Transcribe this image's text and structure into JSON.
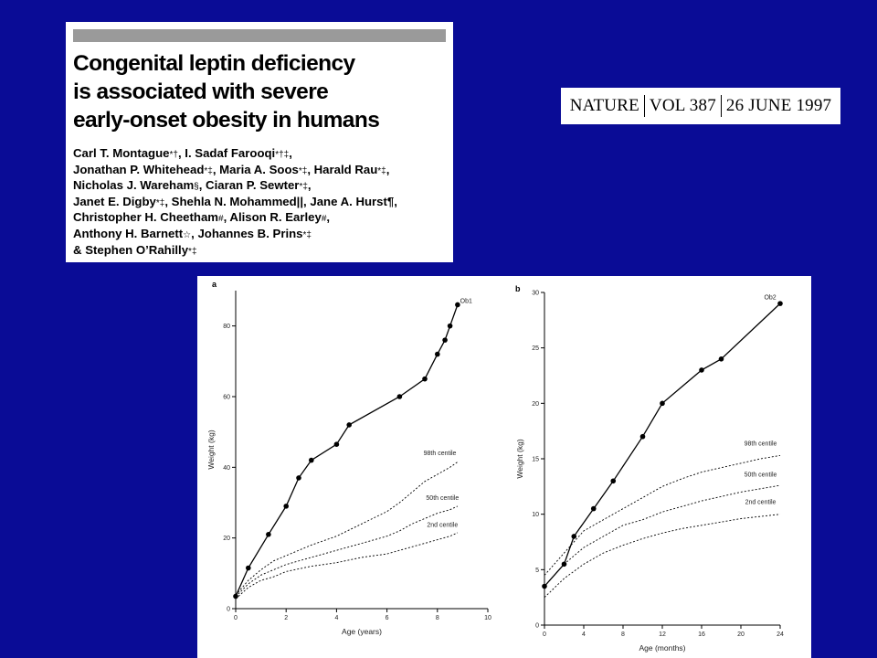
{
  "paper": {
    "title": "Congenital leptin deficiency\nis associated with severe\nearly-onset obesity in humans",
    "authors": [
      [
        {
          "t": "Carl T. Montague"
        },
        {
          "m": "*†"
        },
        {
          "t": ", I. Sadaf Farooqi"
        },
        {
          "m": "*†‡"
        },
        {
          "t": ","
        }
      ],
      [
        {
          "t": "Jonathan P. Whitehead"
        },
        {
          "m": "*‡"
        },
        {
          "t": ", Maria A. Soos"
        },
        {
          "m": "*‡"
        },
        {
          "t": ", Harald Rau"
        },
        {
          "m": "*‡"
        },
        {
          "t": ","
        }
      ],
      [
        {
          "t": "Nicholas J. Wareham"
        },
        {
          "m": "§"
        },
        {
          "t": ", Ciaran P. Sewter"
        },
        {
          "m": "*‡"
        },
        {
          "t": ","
        }
      ],
      [
        {
          "t": "Janet E. Digby"
        },
        {
          "m": "*‡"
        },
        {
          "t": ", Shehla N. Mohammed||, Jane A. Hurst¶,"
        }
      ],
      [
        {
          "t": "Christopher H. Cheetham"
        },
        {
          "m": "#"
        },
        {
          "t": ", Alison R. Earley"
        },
        {
          "m": "#"
        },
        {
          "t": ","
        }
      ],
      [
        {
          "t": "Anthony H. Barnett"
        },
        {
          "m": "☆"
        },
        {
          "t": ", Johannes B. Prins"
        },
        {
          "m": "*‡"
        }
      ],
      [
        {
          "t": "& Stephen O’Rahilly"
        },
        {
          "m": "*‡"
        }
      ]
    ]
  },
  "citation": {
    "journal": "NATURE",
    "volume": "VOL 387",
    "date": "26 JUNE 1997"
  },
  "chart_data": [
    {
      "type": "line",
      "panel": "a",
      "xlabel": "Age (years)",
      "ylabel": "Weight (kg)",
      "xlim": [
        0,
        10
      ],
      "ylim": [
        0,
        90
      ],
      "xticks": [
        0,
        2,
        4,
        6,
        8,
        10
      ],
      "yticks": [
        0,
        20,
        40,
        60,
        80
      ],
      "series": [
        {
          "name": "Ob1",
          "style": "solid-markers",
          "x": [
            0,
            0.5,
            1.3,
            2.0,
            2.5,
            3.0,
            4.0,
            4.5,
            6.5,
            7.5,
            8.0,
            8.3,
            8.5,
            8.8
          ],
          "y": [
            3.5,
            11.5,
            21,
            29,
            37,
            42,
            46.5,
            52,
            60,
            65,
            72,
            76,
            80,
            86
          ]
        },
        {
          "name": "98th centile",
          "style": "dashed",
          "x": [
            0,
            0.5,
            1,
            1.5,
            2,
            3,
            4,
            5,
            6,
            6.5,
            7,
            7.5,
            8,
            8.5,
            8.8
          ],
          "y": [
            3.8,
            8,
            11,
            13.5,
            15,
            18,
            20.5,
            24,
            27.5,
            30,
            33,
            36,
            38,
            40,
            41.5
          ]
        },
        {
          "name": "50th centile",
          "style": "dashed",
          "x": [
            0,
            0.5,
            1,
            1.5,
            2,
            3,
            4,
            5,
            6,
            6.5,
            7,
            7.5,
            8,
            8.5,
            8.8
          ],
          "y": [
            3.4,
            7,
            9.5,
            11,
            12.5,
            14.5,
            16.5,
            18.5,
            20.5,
            22,
            24,
            25.5,
            27,
            28,
            29
          ]
        },
        {
          "name": "2nd centile",
          "style": "dashed",
          "x": [
            0,
            0.5,
            1,
            1.5,
            2,
            3,
            4,
            5,
            6,
            6.5,
            7,
            7.5,
            8,
            8.5,
            8.8
          ],
          "y": [
            2.8,
            6,
            8,
            9,
            10.5,
            12,
            13,
            14.5,
            15.5,
            16.5,
            17.5,
            18.5,
            19.5,
            20.5,
            21.5
          ]
        }
      ]
    },
    {
      "type": "line",
      "panel": "b",
      "xlabel": "Age (months)",
      "ylabel": "Weight (kg)",
      "xlim": [
        0,
        24
      ],
      "ylim": [
        0,
        30
      ],
      "xticks": [
        0,
        4,
        8,
        12,
        16,
        20,
        24
      ],
      "yticks": [
        0,
        5,
        10,
        15,
        20,
        25,
        30
      ],
      "series": [
        {
          "name": "Ob2",
          "style": "solid-markers",
          "x": [
            0,
            2,
            3,
            5,
            7,
            10,
            12,
            16,
            18,
            24
          ],
          "y": [
            3.5,
            5.5,
            8,
            10.5,
            13,
            17,
            20,
            23,
            24,
            29
          ]
        },
        {
          "name": "98th centile",
          "style": "dashed",
          "x": [
            0,
            2,
            4,
            6,
            8,
            10,
            12,
            14,
            16,
            18,
            20,
            22,
            24
          ],
          "y": [
            4.5,
            6.5,
            8.5,
            9.5,
            10.5,
            11.5,
            12.5,
            13.2,
            13.8,
            14.2,
            14.6,
            15,
            15.3
          ]
        },
        {
          "name": "50th centile",
          "style": "dashed",
          "x": [
            0,
            2,
            4,
            6,
            8,
            10,
            12,
            14,
            16,
            18,
            20,
            22,
            24
          ],
          "y": [
            3.5,
            5.5,
            7,
            8,
            9,
            9.5,
            10.2,
            10.7,
            11.2,
            11.6,
            12,
            12.3,
            12.6
          ]
        },
        {
          "name": "2nd centile",
          "style": "dashed",
          "x": [
            0,
            2,
            4,
            6,
            8,
            10,
            12,
            14,
            16,
            18,
            20,
            22,
            24
          ],
          "y": [
            2.5,
            4.2,
            5.5,
            6.5,
            7.2,
            7.8,
            8.3,
            8.7,
            9,
            9.3,
            9.6,
            9.8,
            10
          ]
        }
      ]
    }
  ]
}
